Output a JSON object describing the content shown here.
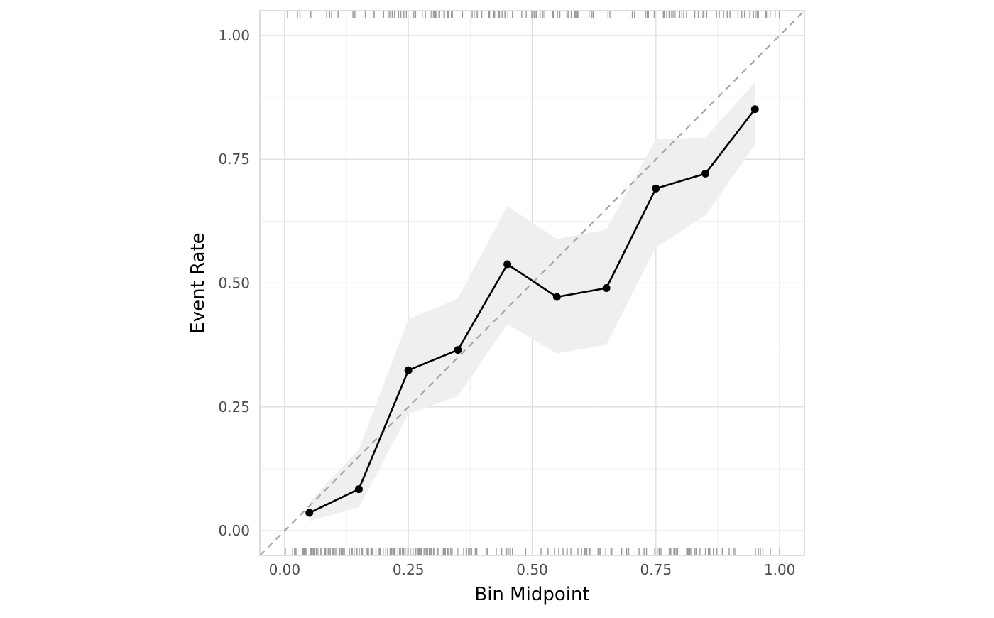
{
  "colors": {
    "background": "#ffffff",
    "panel_border": "#cccccc",
    "grid_major": "#dedede",
    "grid_minor": "#efefef",
    "ribbon": "#efefef",
    "line": "#000000",
    "reference_line": "#a6a6a6",
    "rug": "#9a9a9a"
  },
  "chart_data": {
    "type": "line",
    "title": "",
    "xlabel": "Bin Midpoint",
    "ylabel": "Event Rate",
    "xlim": [
      -0.05,
      1.05
    ],
    "ylim": [
      -0.05,
      1.05
    ],
    "x_ticks": [
      0.0,
      0.25,
      0.5,
      0.75,
      1.0
    ],
    "x_tick_labels": [
      "0.00",
      "0.25",
      "0.50",
      "0.75",
      "1.00"
    ],
    "y_ticks": [
      0.0,
      0.25,
      0.5,
      0.75,
      1.0
    ],
    "y_tick_labels": [
      "0.00",
      "0.25",
      "0.50",
      "0.75",
      "1.00"
    ],
    "grid": true,
    "legend": "none",
    "reference_line": {
      "style": "dashed",
      "from": [
        -0.05,
        -0.05
      ],
      "to": [
        1.05,
        1.05
      ]
    },
    "x": [
      0.05,
      0.15,
      0.25,
      0.35,
      0.45,
      0.55,
      0.65,
      0.75,
      0.85,
      0.95
    ],
    "y": [
      0.036,
      0.084,
      0.324,
      0.365,
      0.538,
      0.472,
      0.49,
      0.691,
      0.721,
      0.851
    ],
    "ci_lower": [
      0.02,
      0.047,
      0.236,
      0.272,
      0.417,
      0.358,
      0.376,
      0.572,
      0.637,
      0.779
    ],
    "ci_upper": [
      0.058,
      0.164,
      0.427,
      0.469,
      0.655,
      0.589,
      0.608,
      0.791,
      0.794,
      0.905
    ],
    "rug_top": [
      0.006,
      0.026,
      0.031,
      0.053,
      0.085,
      0.091,
      0.095,
      0.108,
      0.138,
      0.142,
      0.163,
      0.179,
      0.181,
      0.214,
      0.261,
      0.278,
      0.297,
      0.305,
      0.331,
      0.383,
      0.424,
      0.445,
      0.522,
      0.541,
      0.571,
      0.579,
      0.594,
      0.615,
      0.623,
      0.657,
      0.707,
      0.729,
      0.765,
      0.798,
      0.847,
      0.878,
      0.947,
      0.976
    ],
    "rug_top_dense": [
      [
        0.18,
        0.36
      ],
      [
        0.36,
        0.53
      ],
      [
        0.54,
        0.66
      ],
      [
        0.7,
        0.86
      ],
      [
        0.86,
        1.0
      ]
    ],
    "rug_bottom": [
      0.487,
      0.518,
      0.532,
      0.554,
      0.571,
      0.616,
      0.637,
      0.659,
      0.661,
      0.681,
      0.691,
      0.695,
      0.716,
      0.731,
      0.748,
      0.782,
      0.787,
      0.793,
      0.812,
      0.829,
      0.839,
      0.859,
      0.866,
      0.873,
      0.884,
      0.898,
      0.908,
      0.911,
      0.951,
      0.957,
      0.961,
      0.966,
      0.981,
      1.0
    ],
    "rug_bottom_dense": [
      [
        0.0,
        0.17
      ],
      [
        0.17,
        0.34
      ],
      [
        0.34,
        0.48
      ],
      [
        0.54,
        0.66
      ],
      [
        0.72,
        0.86
      ]
    ]
  }
}
